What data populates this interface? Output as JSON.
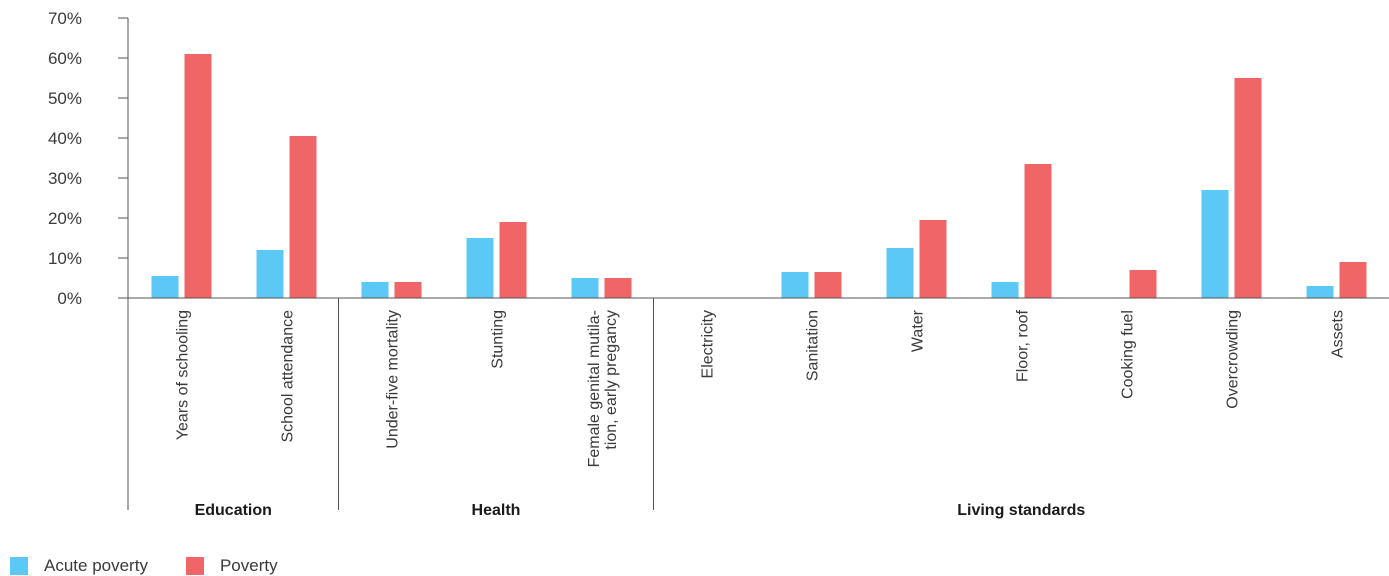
{
  "chart_data": {
    "type": "bar",
    "title": "",
    "xlabel": "",
    "ylabel": "",
    "ylim": [
      0,
      70
    ],
    "y_ticks": [
      "0%",
      "10%",
      "20%",
      "30%",
      "40%",
      "50%",
      "60%",
      "70%"
    ],
    "grid": false,
    "legend_position": "bottom-left",
    "categories": [
      "Years of schooling",
      "School attendance",
      "Under-five mortality",
      "Stunting",
      "Female genital mutila-|tion, early pregancy",
      "Electricity",
      "Sanitation",
      "Water",
      "Floor, roof",
      "Cooking fuel",
      "Overcrowding",
      "Assets"
    ],
    "groups": [
      {
        "label": "Education",
        "categories": [
          "Years of schooling",
          "School attendance"
        ]
      },
      {
        "label": "Health",
        "categories": [
          "Under-five mortality",
          "Stunting",
          "Female genital mutila-|tion, early pregancy"
        ]
      },
      {
        "label": "Living standards",
        "categories": [
          "Electricity",
          "Sanitation",
          "Water",
          "Floor, roof",
          "Cooking fuel",
          "Overcrowding",
          "Assets"
        ]
      }
    ],
    "series": [
      {
        "name": "Acute poverty",
        "color": "#5bc8f5",
        "values": [
          5.5,
          12,
          4,
          15,
          5,
          0,
          6.5,
          12.5,
          4,
          0,
          27,
          3
        ]
      },
      {
        "name": "Poverty",
        "color": "#f06565",
        "values": [
          61,
          40.5,
          4,
          19,
          5,
          0,
          6.5,
          19.5,
          33.5,
          7,
          55,
          9
        ]
      }
    ]
  }
}
